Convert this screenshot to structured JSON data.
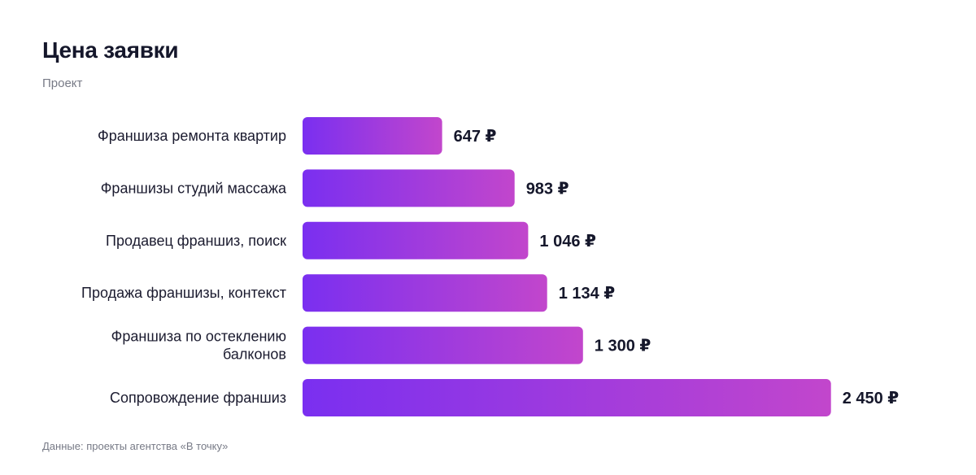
{
  "header": {
    "title": "Цена заявки",
    "subtitle": "Проект"
  },
  "footer": {
    "source": "Данные: проекты агентства «В точку»"
  },
  "colors": {
    "bar_start": "#7a2ff0",
    "bar_end": "#c246cc"
  },
  "chart_data": {
    "type": "bar",
    "orientation": "horizontal",
    "title": "Цена заявки",
    "subtitle": "Проект",
    "categories": [
      [
        "Франшиза ремонта квартир"
      ],
      [
        "Франшизы студий массажа"
      ],
      [
        "Продавец франшиз, поиск"
      ],
      [
        "Продажа франшизы, контекст"
      ],
      [
        "Франшиза по остеклению",
        "балконов"
      ],
      [
        "Сопровождение франшиз"
      ]
    ],
    "values": [
      647,
      983,
      1046,
      1134,
      1300,
      2450
    ],
    "value_labels": [
      "647 ₽",
      "983 ₽",
      "1 046 ₽",
      "1 134 ₽",
      "1 300 ₽",
      "2 450 ₽"
    ],
    "unit": "₽",
    "grid": false,
    "legend": "none"
  }
}
